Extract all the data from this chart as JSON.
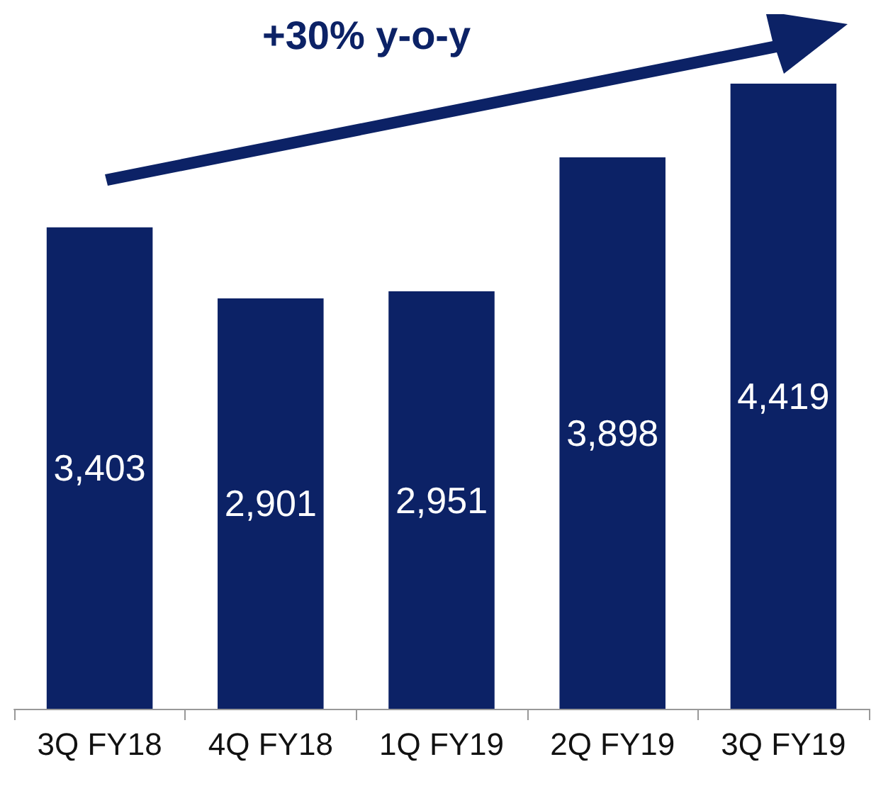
{
  "chart_data": {
    "type": "bar",
    "categories": [
      "3Q FY18",
      "4Q FY18",
      "1Q FY19",
      "2Q FY19",
      "3Q FY19"
    ],
    "values": [
      3403,
      2901,
      2951,
      3898,
      4419
    ],
    "color": "#0c2266",
    "value_labels": [
      "3,403",
      "2,901",
      "2,951",
      "3,898",
      "4,419"
    ],
    "annotations": [
      "+30% y-o-y"
    ]
  }
}
